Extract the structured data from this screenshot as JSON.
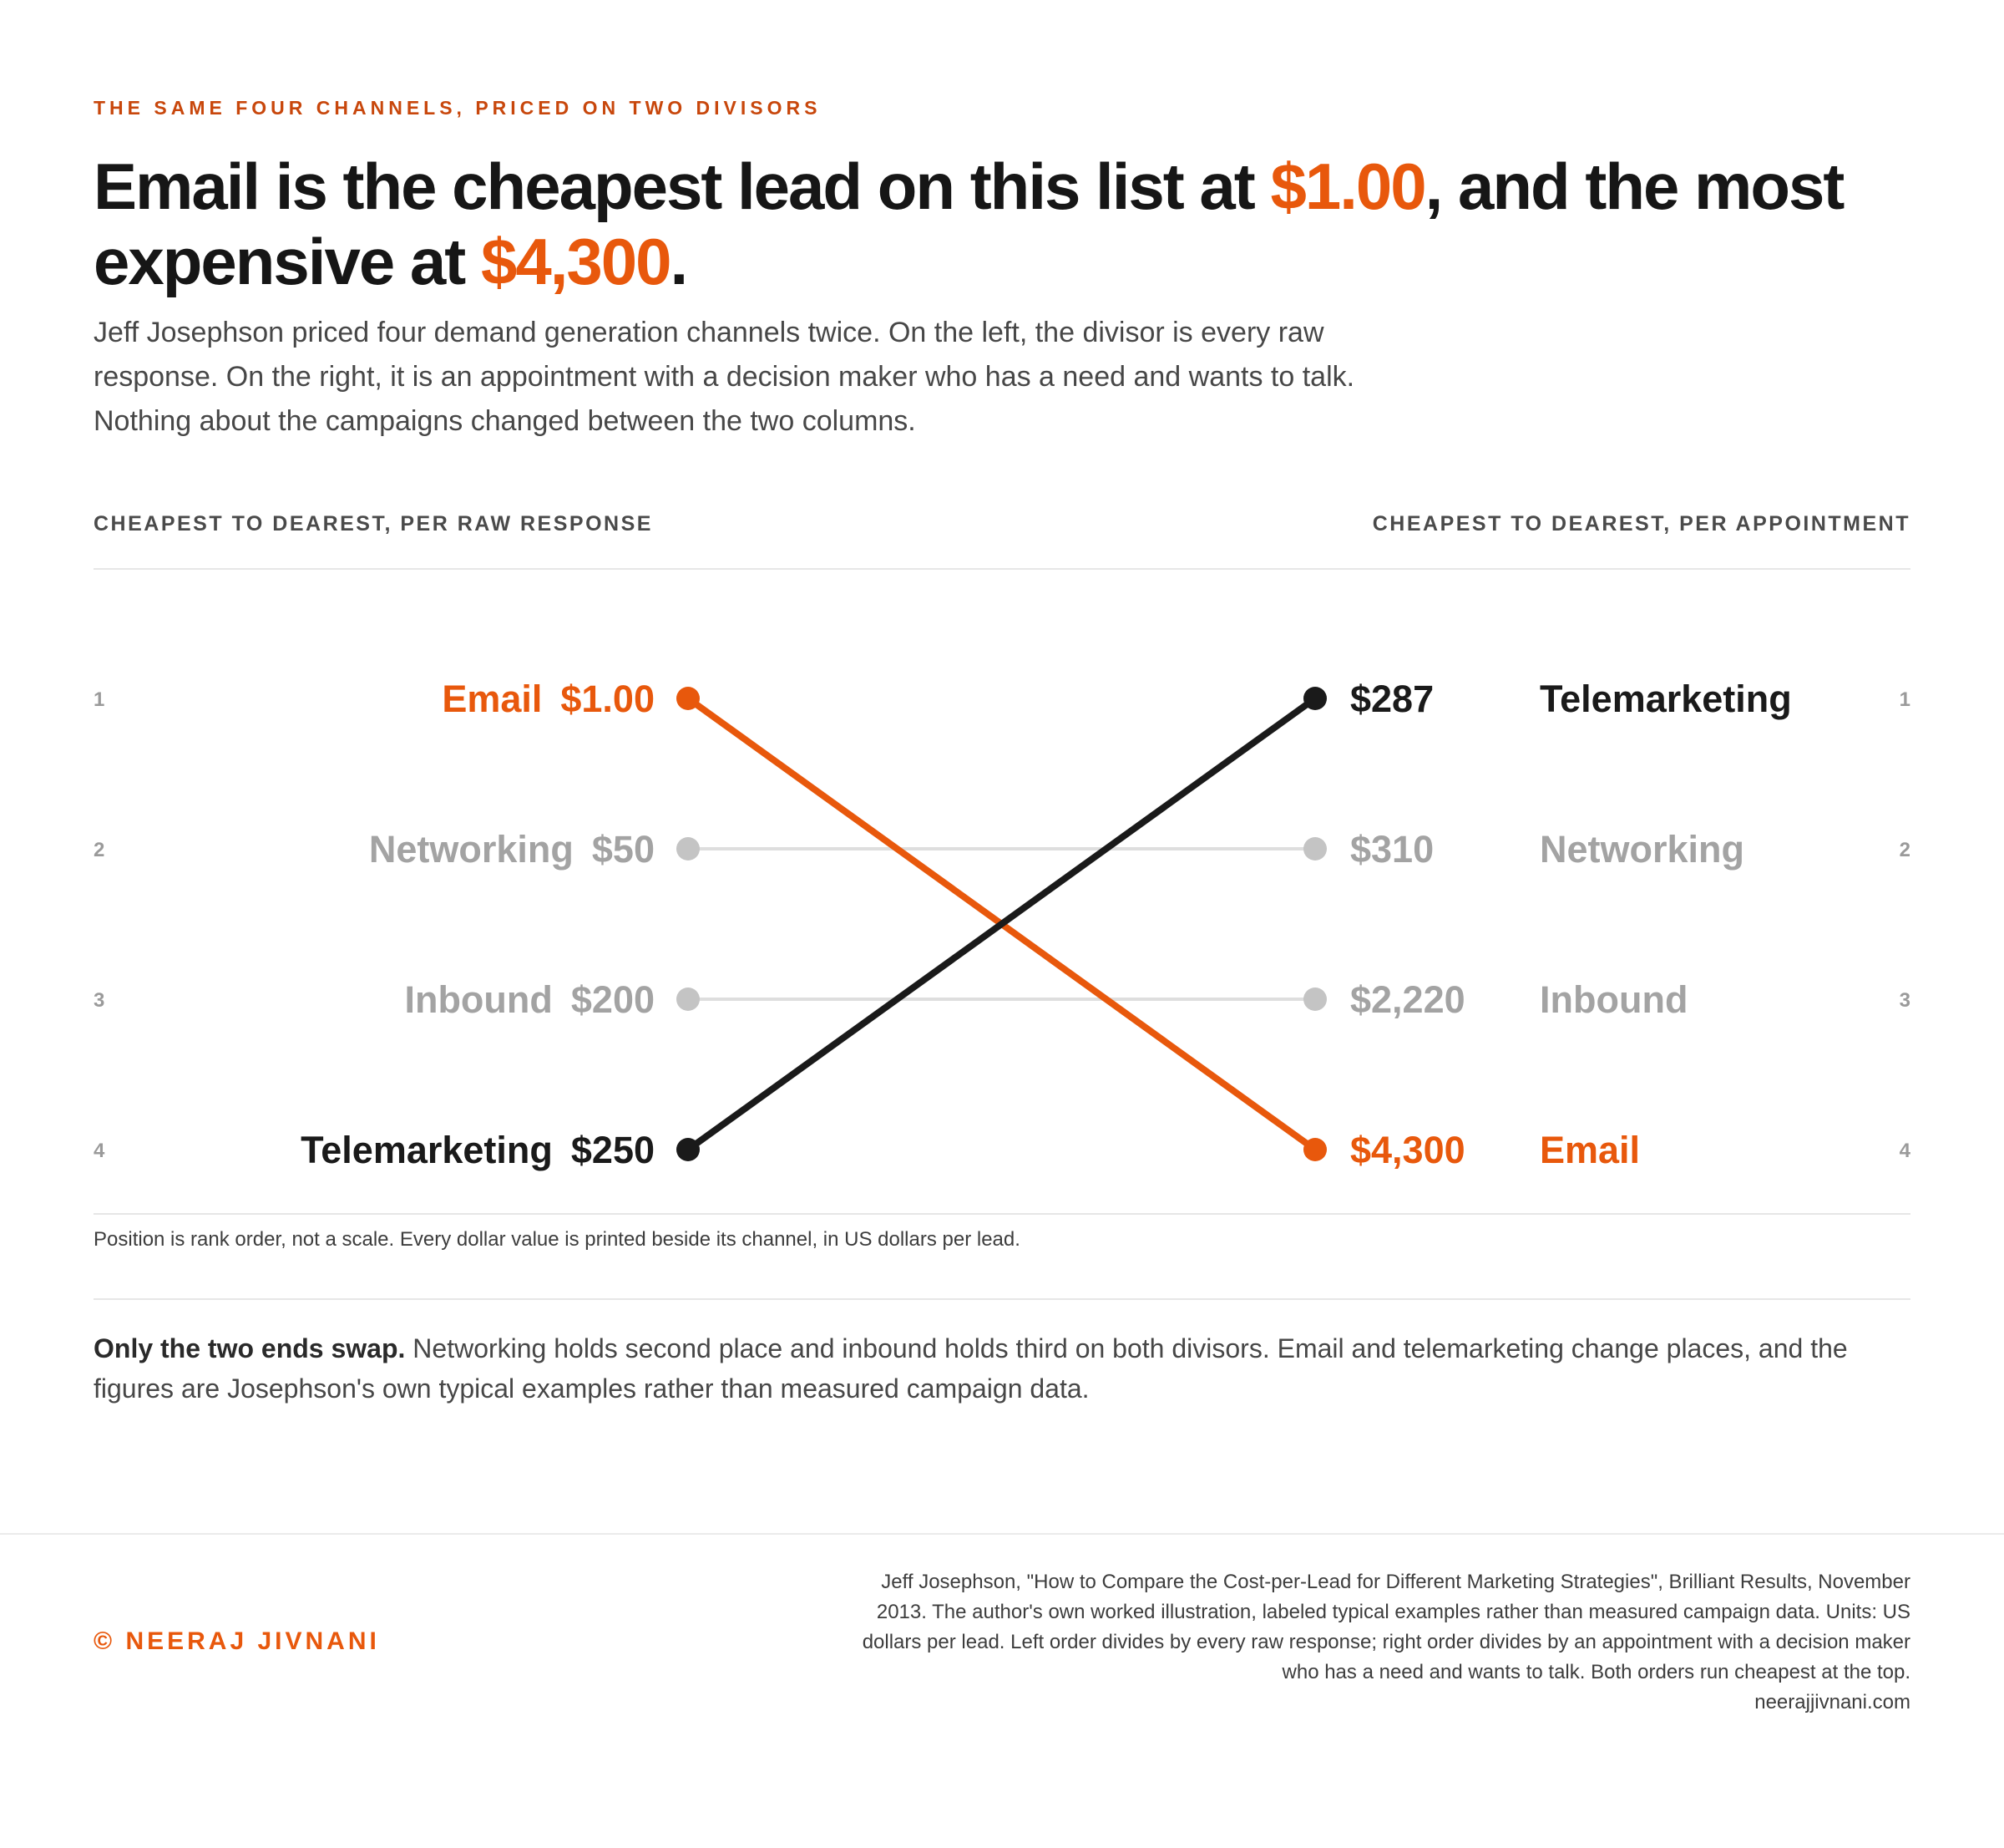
{
  "eyebrow": "THE SAME FOUR CHANNELS, PRICED ON TWO DIVISORS",
  "headline": {
    "part1": "Email is the cheapest lead on this list at ",
    "value1": "$1.00",
    "part2": ", and the most expensive at ",
    "value2": "$4,300",
    "part3": "."
  },
  "dek": "Jeff Josephson priced four demand generation channels twice. On the left, the divisor is every raw response. On the right, it is an appointment with a decision maker who has a need and wants to talk. Nothing about the campaigns changed between the two columns.",
  "colors": {
    "accent": "#e8580c",
    "dark": "#1a1a1a",
    "muted_label": "#a3a3a3",
    "muted_dot": "#c4c4c4",
    "muted_line": "#dedede"
  },
  "chart_data": {
    "type": "slope",
    "left_title": "CHEAPEST TO DEAREST, PER RAW RESPONSE",
    "right_title": "CHEAPEST TO DEAREST, PER APPOINTMENT",
    "ranks": [
      "1",
      "2",
      "3",
      "4"
    ],
    "series": [
      {
        "name": "Email",
        "left_rank": 1,
        "left_value": 1.0,
        "left_label": "$1.00",
        "right_rank": 4,
        "right_value": 4300,
        "right_label": "$4,300",
        "style": "accent"
      },
      {
        "name": "Networking",
        "left_rank": 2,
        "left_value": 50,
        "left_label": "$50",
        "right_rank": 2,
        "right_value": 310,
        "right_label": "$310",
        "style": "muted"
      },
      {
        "name": "Inbound",
        "left_rank": 3,
        "left_value": 200,
        "left_label": "$200",
        "right_rank": 3,
        "right_value": 2220,
        "right_label": "$2,220",
        "style": "muted"
      },
      {
        "name": "Telemarketing",
        "left_rank": 4,
        "left_value": 250,
        "left_label": "$250",
        "right_rank": 1,
        "right_value": 287,
        "right_label": "$287",
        "style": "dark"
      }
    ]
  },
  "note": "Position is rank order, not a scale. Every dollar value is printed beside its channel, in US dollars per lead.",
  "takeaway": {
    "lead": "Only the two ends swap.",
    "body": " Networking holds second place and inbound holds third on both divisors. Email and telemarketing change places, and the figures are Josephson's own typical examples rather than measured campaign data."
  },
  "footer": {
    "copyright": "© NEERAJ JIVNANI",
    "source_lines": [
      "Jeff Josephson, \"How to Compare the Cost-per-Lead for Different Marketing Strategies\", Brilliant Results, November",
      "2013. The author's own worked illustration, labeled typical examples rather than measured campaign data. Units: US",
      "dollars per lead. Left order divides by every raw response; right order divides by an appointment with a decision maker",
      "who has a need and wants to talk. Both orders run cheapest at the top.",
      "neerajjivnani.com"
    ]
  }
}
